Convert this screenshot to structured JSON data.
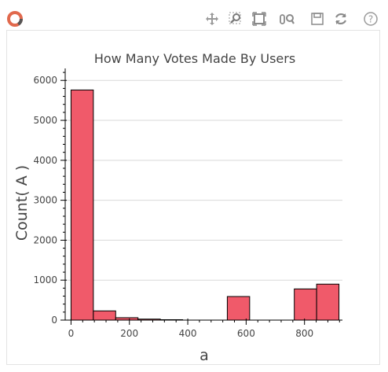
{
  "toolbar": {
    "logo_icon": "bokeh-logo-icon",
    "tools": [
      {
        "name": "pan-tool",
        "icon": "move-arrows-icon"
      },
      {
        "name": "box-zoom-tool",
        "icon": "box-zoom-icon"
      },
      {
        "name": "resize-tool",
        "icon": "resize-icon"
      },
      {
        "name": "wheel-zoom-tool",
        "icon": "wheel-zoom-icon"
      },
      {
        "name": "save-tool",
        "icon": "save-icon"
      },
      {
        "name": "reset-tool",
        "icon": "reset-icon"
      },
      {
        "name": "help-tool",
        "icon": "help-icon"
      }
    ],
    "accent_color": "#e1694d"
  },
  "chart_data": {
    "type": "bar",
    "title": "How Many Votes Made By Users",
    "xlabel": "a",
    "ylabel": "Count( A )",
    "bin_edges": [
      0,
      76.5,
      153,
      229.5,
      306,
      382.5,
      459,
      535.5,
      612,
      688.5,
      765,
      841.5,
      918
    ],
    "values": [
      5760,
      230,
      60,
      25,
      10,
      0,
      0,
      590,
      0,
      0,
      780,
      900
    ],
    "xlim": [
      -20,
      930
    ],
    "ylim": [
      0,
      6300
    ],
    "x_ticks": [
      0,
      200,
      400,
      600,
      800
    ],
    "y_ticks": [
      0,
      1000,
      2000,
      3000,
      4000,
      5000,
      6000
    ],
    "grid": "horizontal",
    "bar_color": "#f05a6a",
    "bar_edge_color": "#000000"
  }
}
